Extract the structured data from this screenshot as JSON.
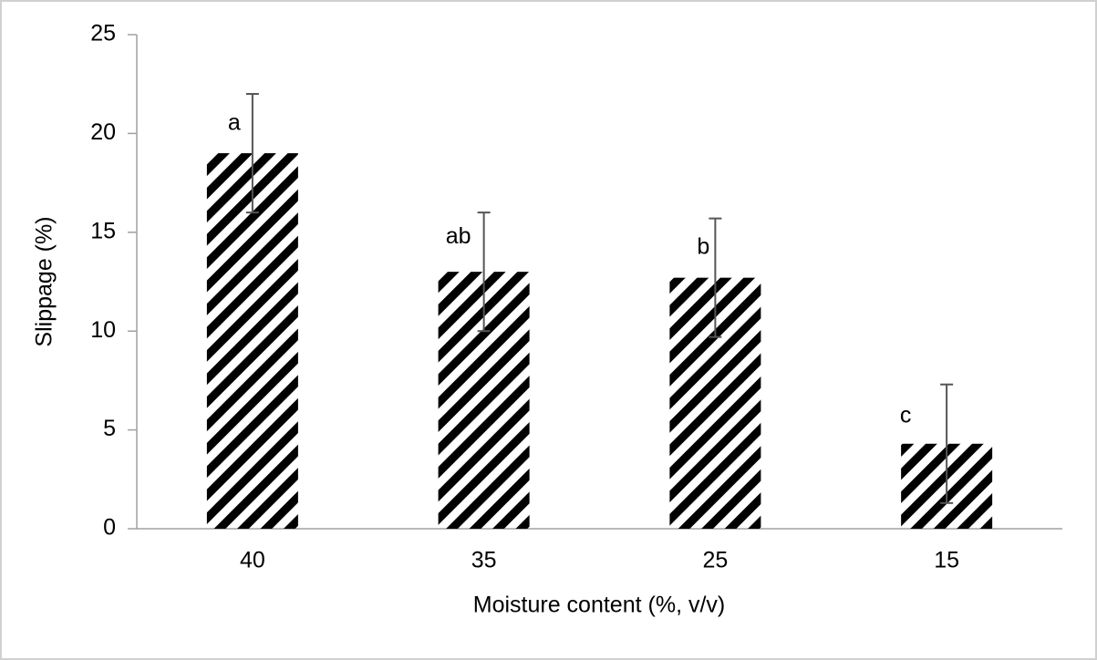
{
  "chart_data": {
    "type": "bar",
    "x_label": "Moisture content (%, v/v)",
    "y_label": "Slippage (%)",
    "categories": [
      "40",
      "35",
      "25",
      "15"
    ],
    "values": [
      19,
      13,
      12.7,
      4.3
    ],
    "errors": [
      3,
      3,
      3,
      3
    ],
    "annotations": [
      "a",
      "ab",
      "b",
      "c"
    ],
    "color": "#000000",
    "ylim": [
      0,
      25
    ],
    "yticks": [
      0,
      5,
      10,
      15,
      20,
      25
    ],
    "grid": false
  }
}
